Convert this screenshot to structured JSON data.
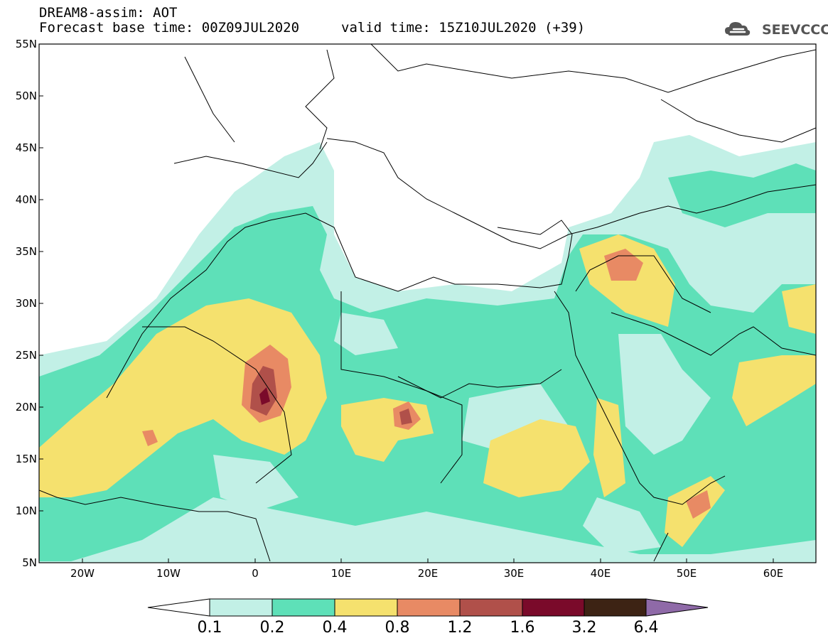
{
  "header": {
    "title": "DREAM8-assim: AOT",
    "base_time": "Forecast base time: 00Z09JUL2020",
    "valid_time": "valid time: 15Z10JUL2020 (+39)",
    "logo_text": "SEEVCCC",
    "logo_icon": "cloud-icon"
  },
  "map": {
    "lat_labels": [
      "55N",
      "50N",
      "45N",
      "40N",
      "35N",
      "30N",
      "25N",
      "20N",
      "15N",
      "10N",
      "5N"
    ],
    "lon_labels": [
      "20W",
      "10W",
      "0",
      "10E",
      "20E",
      "30E",
      "40E",
      "50E",
      "60E"
    ],
    "lat_range": [
      5,
      55
    ],
    "lon_range": [
      -25,
      65
    ],
    "quantity": "AOT"
  },
  "colorbar": {
    "labels": [
      "0.1",
      "0.2",
      "0.4",
      "0.8",
      "1.2",
      "1.6",
      "3.2",
      "6.4"
    ],
    "colors": [
      "#ffffff",
      "#c2f0e6",
      "#5ee0b8",
      "#f5e16e",
      "#e88a64",
      "#b0504a",
      "#7a0a2a",
      "#3d2314",
      "#8f6aa8"
    ]
  }
}
